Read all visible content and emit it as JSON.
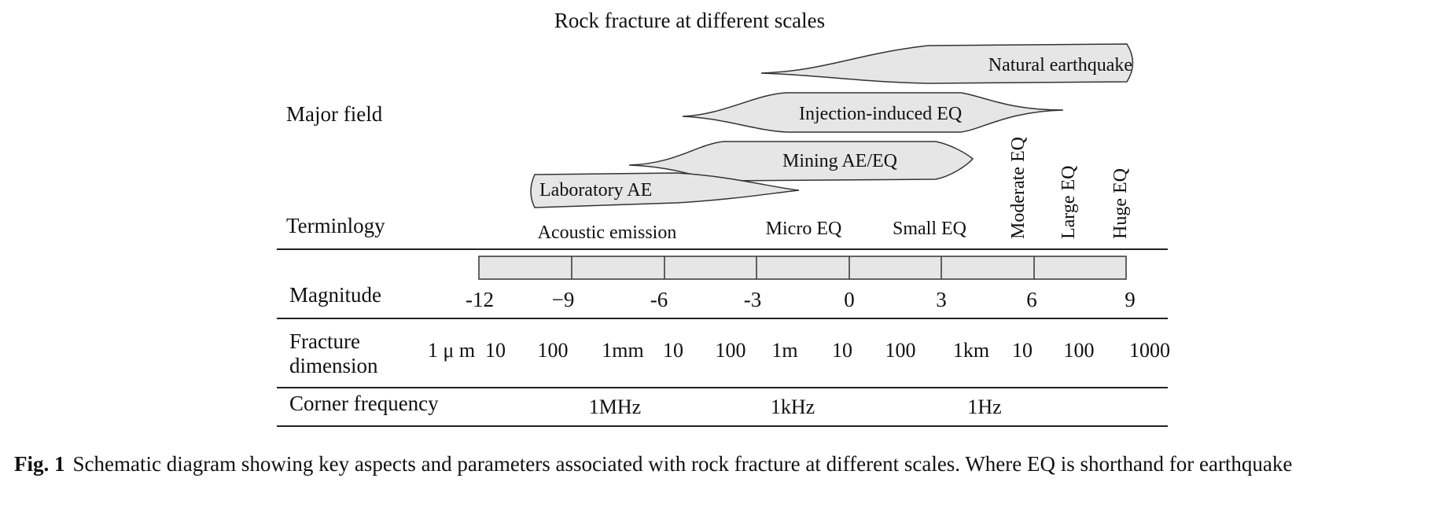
{
  "title": "Rock fracture at different scales",
  "row_labels": {
    "major_field": "Major field",
    "terminology": "Terminlogy",
    "magnitude": "Magnitude",
    "fracture_1": "Fracture",
    "fracture_2": "dimension",
    "corner_frequency": "Corner frequency"
  },
  "major_fields": [
    "Natural earthquake",
    "Injection-induced EQ",
    "Mining AE/EQ",
    "Laboratory AE"
  ],
  "terminology": {
    "horizontal": [
      "Acoustic emission",
      "Micro EQ",
      "Small EQ"
    ],
    "vertical": [
      "Moderate EQ",
      "Large EQ",
      "Huge EQ"
    ]
  },
  "magnitude_ticks": [
    "-12",
    "−9",
    "-6",
    "-3",
    "0",
    "3",
    "6",
    "9"
  ],
  "fracture_dimensions": [
    "1 μ m",
    "10",
    "100",
    "1mm",
    "10",
    "100",
    "1m",
    "10",
    "100",
    "1km",
    "10",
    "100",
    "1000"
  ],
  "corner_frequencies": [
    "1MHz",
    "1kHz",
    "1Hz"
  ],
  "caption": {
    "label": "Fig. 1",
    "text": "Schematic diagram showing key aspects and parameters associated with rock fracture at different scales. Where EQ is shorthand for earthquake"
  },
  "colors": {
    "shape_fill": "#e6e6e6",
    "stroke": "#333333",
    "rule": "#222222"
  }
}
